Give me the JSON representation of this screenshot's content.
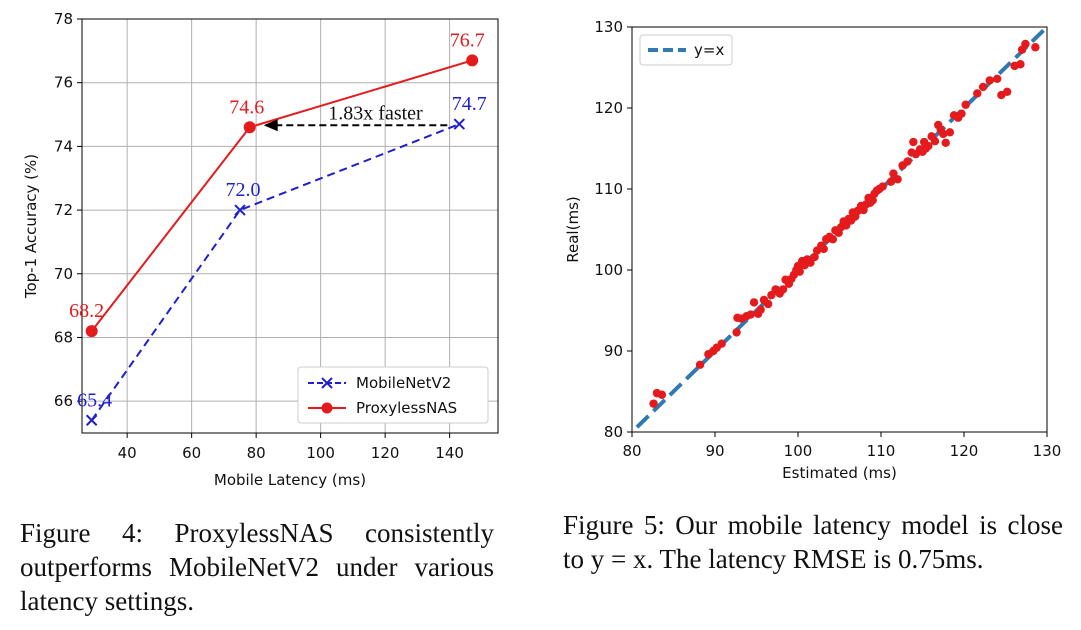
{
  "chart_data": [
    {
      "type": "line",
      "xlabel": "Mobile Latency (ms)",
      "ylabel": "Top-1 Accuracy (%)",
      "xlim": [
        26,
        155
      ],
      "ylim": [
        65,
        78
      ],
      "xticks": [
        "40",
        "60",
        "80",
        "100",
        "120",
        "140"
      ],
      "yticks": [
        "66",
        "68",
        "70",
        "72",
        "74",
        "76",
        "78"
      ],
      "grid": true,
      "legend_position": "lower-right",
      "series": [
        {
          "name": "MobileNetV2",
          "color": "#1f1fcf",
          "x": [
            29,
            75,
            143
          ],
          "y": [
            65.4,
            72.0,
            74.7
          ],
          "labels": [
            "65.4",
            "72.0",
            "74.7"
          ]
        },
        {
          "name": "ProxylessNAS",
          "color": "#e41a1c",
          "x": [
            29,
            78,
            147
          ],
          "y": [
            68.2,
            74.6,
            76.7
          ],
          "labels": [
            "68.2",
            "74.6",
            "76.7"
          ]
        }
      ],
      "annotation": {
        "text": "1.83x faster",
        "from": [
          143,
          74.6
        ],
        "to": [
          78,
          74.6
        ]
      }
    },
    {
      "type": "scatter",
      "xlabel": "Estimated (ms)",
      "ylabel": "Real(ms)",
      "xlim": [
        80,
        130
      ],
      "ylim": [
        80,
        130
      ],
      "xticks": [
        "80",
        "90",
        "100",
        "110",
        "120",
        "130"
      ],
      "yticks": [
        "80",
        "90",
        "100",
        "110",
        "120",
        "130"
      ],
      "grid": false,
      "legend_position": "top-left",
      "reference_line": {
        "name": "y=x",
        "color": "#2f7ab0"
      },
      "series": [
        {
          "name": "",
          "color": "#e41a1c",
          "points": [
            [
              82.6,
              83.5
            ],
            [
              83.0,
              84.8
            ],
            [
              83.6,
              84.6
            ],
            [
              88.2,
              88.3
            ],
            [
              89.2,
              89.6
            ],
            [
              89.8,
              90.0
            ],
            [
              90.2,
              90.4
            ],
            [
              90.8,
              90.9
            ],
            [
              92.6,
              92.3
            ],
            [
              92.7,
              94.1
            ],
            [
              93.2,
              94.0
            ],
            [
              93.8,
              94.3
            ],
            [
              94.3,
              94.5
            ],
            [
              94.7,
              96.0
            ],
            [
              95.2,
              94.6
            ],
            [
              95.5,
              95.1
            ],
            [
              95.9,
              96.3
            ],
            [
              96.4,
              95.8
            ],
            [
              96.8,
              96.9
            ],
            [
              97.3,
              97.6
            ],
            [
              97.8,
              97.1
            ],
            [
              98.2,
              97.6
            ],
            [
              98.5,
              98.8
            ],
            [
              98.9,
              98.3
            ],
            [
              99.2,
              98.9
            ],
            [
              99.5,
              99.4
            ],
            [
              99.8,
              100.0
            ],
            [
              100.0,
              100.5
            ],
            [
              100.2,
              99.8
            ],
            [
              100.5,
              101.1
            ],
            [
              100.8,
              100.6
            ],
            [
              101.1,
              101.3
            ],
            [
              101.5,
              100.9
            ],
            [
              102.0,
              101.6
            ],
            [
              102.3,
              102.4
            ],
            [
              102.8,
              103.0
            ],
            [
              103.1,
              102.6
            ],
            [
              103.4,
              103.8
            ],
            [
              103.8,
              104.1
            ],
            [
              104.2,
              103.8
            ],
            [
              104.5,
              104.9
            ],
            [
              104.9,
              104.6
            ],
            [
              105.2,
              105.3
            ],
            [
              105.5,
              106.0
            ],
            [
              105.8,
              105.5
            ],
            [
              106.1,
              106.3
            ],
            [
              106.4,
              106.1
            ],
            [
              106.6,
              107.1
            ],
            [
              106.9,
              106.6
            ],
            [
              107.2,
              107.3
            ],
            [
              107.6,
              107.9
            ],
            [
              107.9,
              107.4
            ],
            [
              108.2,
              108.1
            ],
            [
              108.5,
              108.9
            ],
            [
              108.7,
              108.3
            ],
            [
              109.0,
              108.6
            ],
            [
              109.2,
              109.4
            ],
            [
              109.5,
              109.8
            ],
            [
              109.8,
              110.0
            ],
            [
              110.2,
              110.3
            ],
            [
              111.2,
              110.9
            ],
            [
              111.5,
              111.9
            ],
            [
              112.0,
              111.2
            ],
            [
              112.6,
              112.9
            ],
            [
              113.2,
              113.4
            ],
            [
              113.7,
              114.5
            ],
            [
              114.2,
              114.3
            ],
            [
              114.7,
              114.9
            ],
            [
              115.0,
              114.6
            ],
            [
              115.4,
              115.0
            ],
            [
              115.7,
              115.3
            ],
            [
              116.1,
              116.5
            ],
            [
              116.5,
              115.9
            ],
            [
              116.9,
              117.9
            ],
            [
              117.2,
              117.3
            ],
            [
              117.5,
              116.8
            ],
            [
              117.8,
              115.7
            ],
            [
              118.3,
              117.0
            ],
            [
              118.8,
              119.1
            ],
            [
              119.3,
              118.8
            ],
            [
              119.7,
              119.3
            ],
            [
              120.2,
              120.4
            ],
            [
              122.3,
              122.6
            ],
            [
              123.1,
              123.4
            ],
            [
              124.0,
              123.6
            ],
            [
              124.5,
              121.6
            ],
            [
              125.2,
              122.0
            ],
            [
              126.1,
              125.2
            ],
            [
              126.8,
              125.4
            ],
            [
              127.0,
              127.2
            ],
            [
              127.4,
              127.9
            ],
            [
              128.6,
              127.5
            ],
            [
              115.2,
              115.8
            ],
            [
              113.9,
              115.8
            ],
            [
              121.6,
              121.8
            ]
          ]
        }
      ]
    }
  ],
  "captions": {
    "left": "Figure 4:  ProxylessNAS consistently outperforms MobileNetV2 under various latency settings.",
    "right": "Figure 5:  Our mobile latency model is close to y = x.  The latency RMSE is 0.75ms."
  }
}
